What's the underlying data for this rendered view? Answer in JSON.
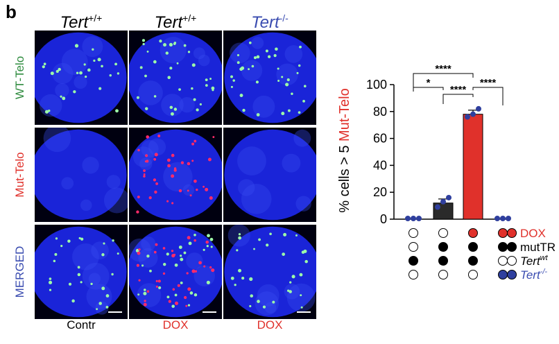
{
  "panel_letter": "b",
  "microscopy": {
    "columns": [
      {
        "genotype": "Tert",
        "sup": "+/+",
        "color": "#000000",
        "footer": "Contr",
        "footer_color": "#000000"
      },
      {
        "genotype": "Tert",
        "sup": "+/+",
        "color": "#000000",
        "footer": "DOX",
        "footer_color": "#e0312b"
      },
      {
        "genotype": "Tert",
        "sup": "-/-",
        "color": "#3a4cb0",
        "footer": "DOX",
        "footer_color": "#e0312b"
      }
    ],
    "rows": [
      {
        "label": "WT-Telo",
        "color": "#2e8b3e"
      },
      {
        "label": "Mut-Telo",
        "color": "#e0312b"
      },
      {
        "label": "MERGED",
        "color": "#3a4cb0"
      }
    ]
  },
  "chart_data": {
    "type": "bar",
    "ylabel_prefix": "% cells > 5 ",
    "ylabel_highlight": "Mut-Telo",
    "ylabel_highlight_color": "#e0312b",
    "ylim": [
      0,
      100
    ],
    "yticks": [
      "0",
      "20",
      "40",
      "60",
      "80",
      "100"
    ],
    "bars": [
      {
        "value": 0,
        "color": "#ffffff",
        "err": 0,
        "points": [
          0,
          0,
          0
        ]
      },
      {
        "value": 12,
        "color": "#2a2a2a",
        "err": 3,
        "points": [
          9,
          13,
          16
        ]
      },
      {
        "value": 78,
        "color": "#e0312b",
        "err": 3,
        "points": [
          76,
          78,
          82
        ]
      },
      {
        "value": 0,
        "color": "#ffffff",
        "err": 0,
        "points": [
          0,
          0,
          0
        ]
      }
    ],
    "point_color": "#2f3f9e",
    "significance": [
      {
        "from": 0,
        "to": 1,
        "label": "*"
      },
      {
        "from": 0,
        "to": 2,
        "label": "****"
      },
      {
        "from": 1,
        "to": 2,
        "label": "****"
      },
      {
        "from": 2,
        "to": 3,
        "label": "****"
      }
    ],
    "conditions": [
      {
        "name": "DOX",
        "color": "#e0312b",
        "legend_fill": "#e0312b",
        "states": [
          "off",
          "off",
          "red",
          "red"
        ]
      },
      {
        "name": "mutTR",
        "color": "#000000",
        "legend_fill": "#000000",
        "states": [
          "off",
          "on",
          "on",
          "on"
        ]
      },
      {
        "name": "Tert",
        "sup": "wt",
        "italic": true,
        "color": "#000000",
        "legend_fill": "#ffffff",
        "states": [
          "on",
          "on",
          "on",
          "off"
        ]
      },
      {
        "name": "Tert",
        "sup": "-/-",
        "italic": true,
        "color": "#3a4cb0",
        "legend_fill": "#2f3f9e",
        "states": [
          "off",
          "off",
          "off",
          "blue"
        ]
      }
    ]
  }
}
